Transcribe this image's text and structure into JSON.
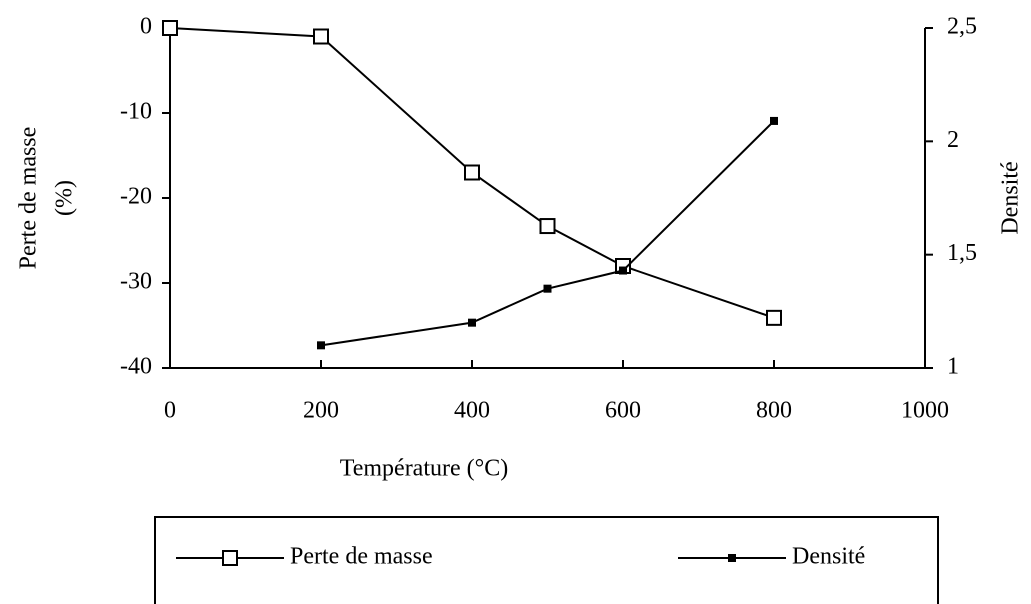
{
  "chart_data": {
    "type": "line",
    "xlabel": "Température (°C)",
    "ylabel": [
      "Perte de masse",
      "(%)"
    ],
    "y2label": "Densité",
    "x": [
      0,
      200,
      400,
      500,
      600,
      800
    ],
    "series": [
      {
        "name": "Perte de masse",
        "color": "#000000",
        "marker": "open-square",
        "values": [
          0,
          -1,
          -17,
          -23.3,
          -28,
          -34.1
        ]
      },
      {
        "name": "Densité",
        "color": "#000000",
        "marker": "filled-square",
        "axis": "y2",
        "values": [
          null,
          1.1,
          1.2,
          1.35,
          1.43,
          2.09
        ]
      }
    ],
    "xlim": [
      0,
      1000
    ],
    "xticks": [
      0,
      200,
      400,
      600,
      800,
      1000
    ],
    "ylim": [
      -40,
      0
    ],
    "yticks": [
      0,
      -10,
      -20,
      -30,
      -40
    ],
    "y2lim": [
      1,
      2.5
    ],
    "y2ticks": [
      1,
      {
        "value": 1.5,
        "label": "1,5"
      },
      2,
      {
        "value": 2.5,
        "label": "2,5"
      }
    ],
    "legend": "bottom"
  }
}
